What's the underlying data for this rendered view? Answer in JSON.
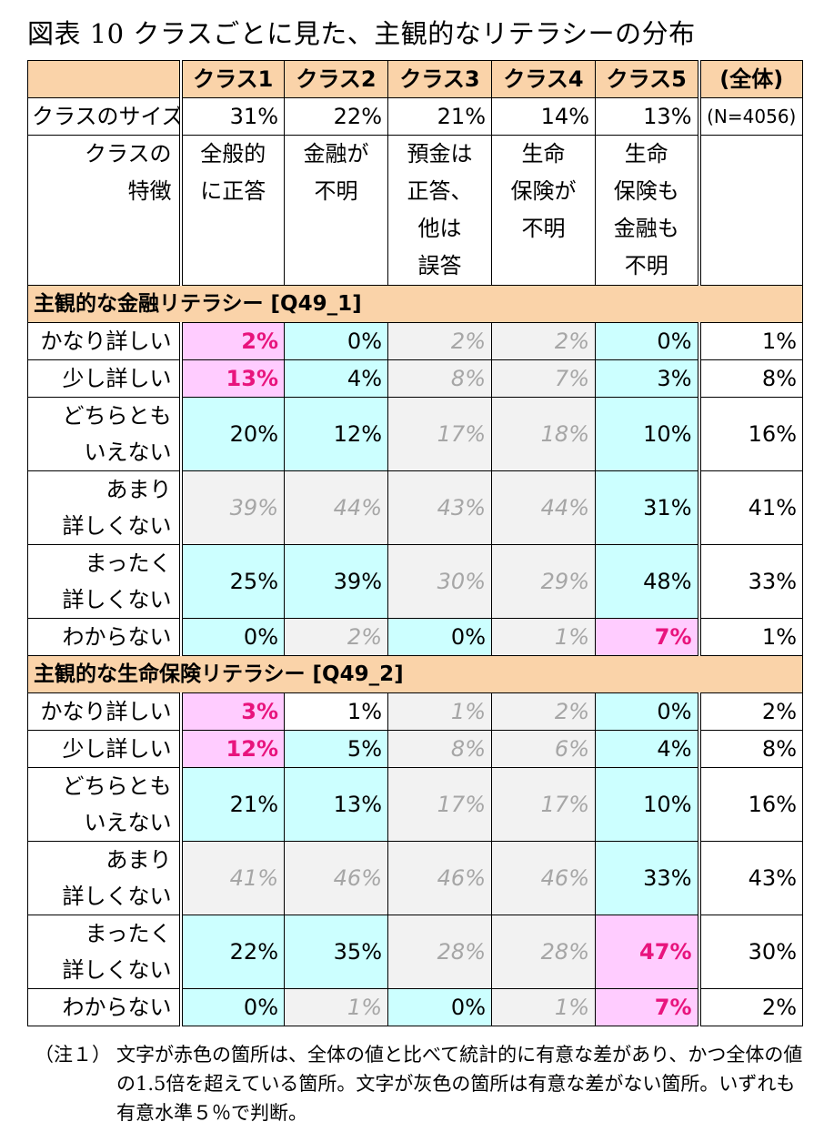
{
  "title": "図表 10 クラスごとに見た、主観的なリテラシーの分布",
  "header": [
    "クラス1",
    "クラス2",
    "クラス3",
    "クラス4",
    "クラス5",
    "(全体)"
  ],
  "size": {
    "label": "クラスのサイズ",
    "values": [
      "31%",
      "22%",
      "21%",
      "14%",
      "13%"
    ],
    "total": "(N=4056)"
  },
  "features": {
    "label_line1": "クラスの",
    "label_line2": "特徴",
    "values": [
      [
        "全般的",
        "に正答"
      ],
      [
        "金融が",
        "不明"
      ],
      [
        "預金は",
        "正答、",
        "他は",
        "誤答"
      ],
      [
        "生命",
        "保険が",
        "不明"
      ],
      [
        "生命",
        "保険も",
        "金融も",
        "不明"
      ]
    ]
  },
  "sections": [
    {
      "title": "主観的な金融リテラシー [Q49_1]",
      "rows": [
        {
          "label": [
            "かなり詳しい"
          ],
          "tall": false,
          "cells": [
            {
              "v": "2%",
              "s": "pink"
            },
            {
              "v": "0%",
              "s": "cyan"
            },
            {
              "v": "2%",
              "s": "gray"
            },
            {
              "v": "2%",
              "s": "gray"
            },
            {
              "v": "0%",
              "s": "cyan"
            }
          ],
          "total": "1%"
        },
        {
          "label": [
            "少し詳しい"
          ],
          "tall": false,
          "cells": [
            {
              "v": "13%",
              "s": "pink"
            },
            {
              "v": "4%",
              "s": "cyan"
            },
            {
              "v": "8%",
              "s": "gray"
            },
            {
              "v": "7%",
              "s": "gray"
            },
            {
              "v": "3%",
              "s": "cyan"
            }
          ],
          "total": "8%"
        },
        {
          "label": [
            "どちらとも",
            "いえない"
          ],
          "tall": true,
          "cells": [
            {
              "v": "20%",
              "s": "cyan"
            },
            {
              "v": "12%",
              "s": "cyan"
            },
            {
              "v": "17%",
              "s": "gray"
            },
            {
              "v": "18%",
              "s": "gray"
            },
            {
              "v": "10%",
              "s": "cyan"
            }
          ],
          "total": "16%"
        },
        {
          "label": [
            "あまり",
            "詳しくない"
          ],
          "tall": true,
          "cells": [
            {
              "v": "39%",
              "s": "gray"
            },
            {
              "v": "44%",
              "s": "gray"
            },
            {
              "v": "43%",
              "s": "gray"
            },
            {
              "v": "44%",
              "s": "gray"
            },
            {
              "v": "31%",
              "s": "cyan"
            }
          ],
          "total": "41%"
        },
        {
          "label": [
            "まったく",
            "詳しくない"
          ],
          "tall": true,
          "cells": [
            {
              "v": "25%",
              "s": "cyan"
            },
            {
              "v": "39%",
              "s": "cyan"
            },
            {
              "v": "30%",
              "s": "gray"
            },
            {
              "v": "29%",
              "s": "gray"
            },
            {
              "v": "48%",
              "s": "cyan"
            }
          ],
          "total": "33%"
        },
        {
          "label": [
            "わからない"
          ],
          "tall": false,
          "cells": [
            {
              "v": "0%",
              "s": "cyan"
            },
            {
              "v": "2%",
              "s": "gray"
            },
            {
              "v": "0%",
              "s": "cyan"
            },
            {
              "v": "1%",
              "s": "gray"
            },
            {
              "v": "7%",
              "s": "pink"
            }
          ],
          "total": "1%"
        }
      ]
    },
    {
      "title": "主観的な生命保険リテラシー [Q49_2]",
      "rows": [
        {
          "label": [
            "かなり詳しい"
          ],
          "tall": false,
          "cells": [
            {
              "v": "3%",
              "s": "pink"
            },
            {
              "v": "1%",
              "s": "plain"
            },
            {
              "v": "1%",
              "s": "gray"
            },
            {
              "v": "2%",
              "s": "gray"
            },
            {
              "v": "0%",
              "s": "cyan"
            }
          ],
          "total": "2%"
        },
        {
          "label": [
            "少し詳しい"
          ],
          "tall": false,
          "cells": [
            {
              "v": "12%",
              "s": "pink"
            },
            {
              "v": "5%",
              "s": "cyan"
            },
            {
              "v": "8%",
              "s": "gray"
            },
            {
              "v": "6%",
              "s": "gray"
            },
            {
              "v": "4%",
              "s": "cyan"
            }
          ],
          "total": "8%"
        },
        {
          "label": [
            "どちらとも",
            "いえない"
          ],
          "tall": true,
          "cells": [
            {
              "v": "21%",
              "s": "cyan"
            },
            {
              "v": "13%",
              "s": "cyan"
            },
            {
              "v": "17%",
              "s": "gray"
            },
            {
              "v": "17%",
              "s": "gray"
            },
            {
              "v": "10%",
              "s": "cyan"
            }
          ],
          "total": "16%"
        },
        {
          "label": [
            "あまり",
            "詳しくない"
          ],
          "tall": true,
          "cells": [
            {
              "v": "41%",
              "s": "gray"
            },
            {
              "v": "46%",
              "s": "gray"
            },
            {
              "v": "46%",
              "s": "gray"
            },
            {
              "v": "46%",
              "s": "gray"
            },
            {
              "v": "33%",
              "s": "cyan"
            }
          ],
          "total": "43%"
        },
        {
          "label": [
            "まったく",
            "詳しくない"
          ],
          "tall": true,
          "cells": [
            {
              "v": "22%",
              "s": "cyan"
            },
            {
              "v": "35%",
              "s": "cyan"
            },
            {
              "v": "28%",
              "s": "gray"
            },
            {
              "v": "28%",
              "s": "gray"
            },
            {
              "v": "47%",
              "s": "pink"
            }
          ],
          "total": "30%"
        },
        {
          "label": [
            "わからない"
          ],
          "tall": false,
          "cells": [
            {
              "v": "0%",
              "s": "cyan"
            },
            {
              "v": "1%",
              "s": "gray"
            },
            {
              "v": "0%",
              "s": "cyan"
            },
            {
              "v": "1%",
              "s": "gray"
            },
            {
              "v": "7%",
              "s": "pink"
            }
          ],
          "total": "2%"
        }
      ]
    }
  ],
  "note": {
    "tag": "（注１）",
    "text": "文字が赤色の箇所は、全体の値と比べて統計的に有意な差があり、かつ全体の値の1.5倍を超えている箇所。文字が灰色の箇所は有意な差がない箇所。いずれも有意水準５％で判断。"
  }
}
